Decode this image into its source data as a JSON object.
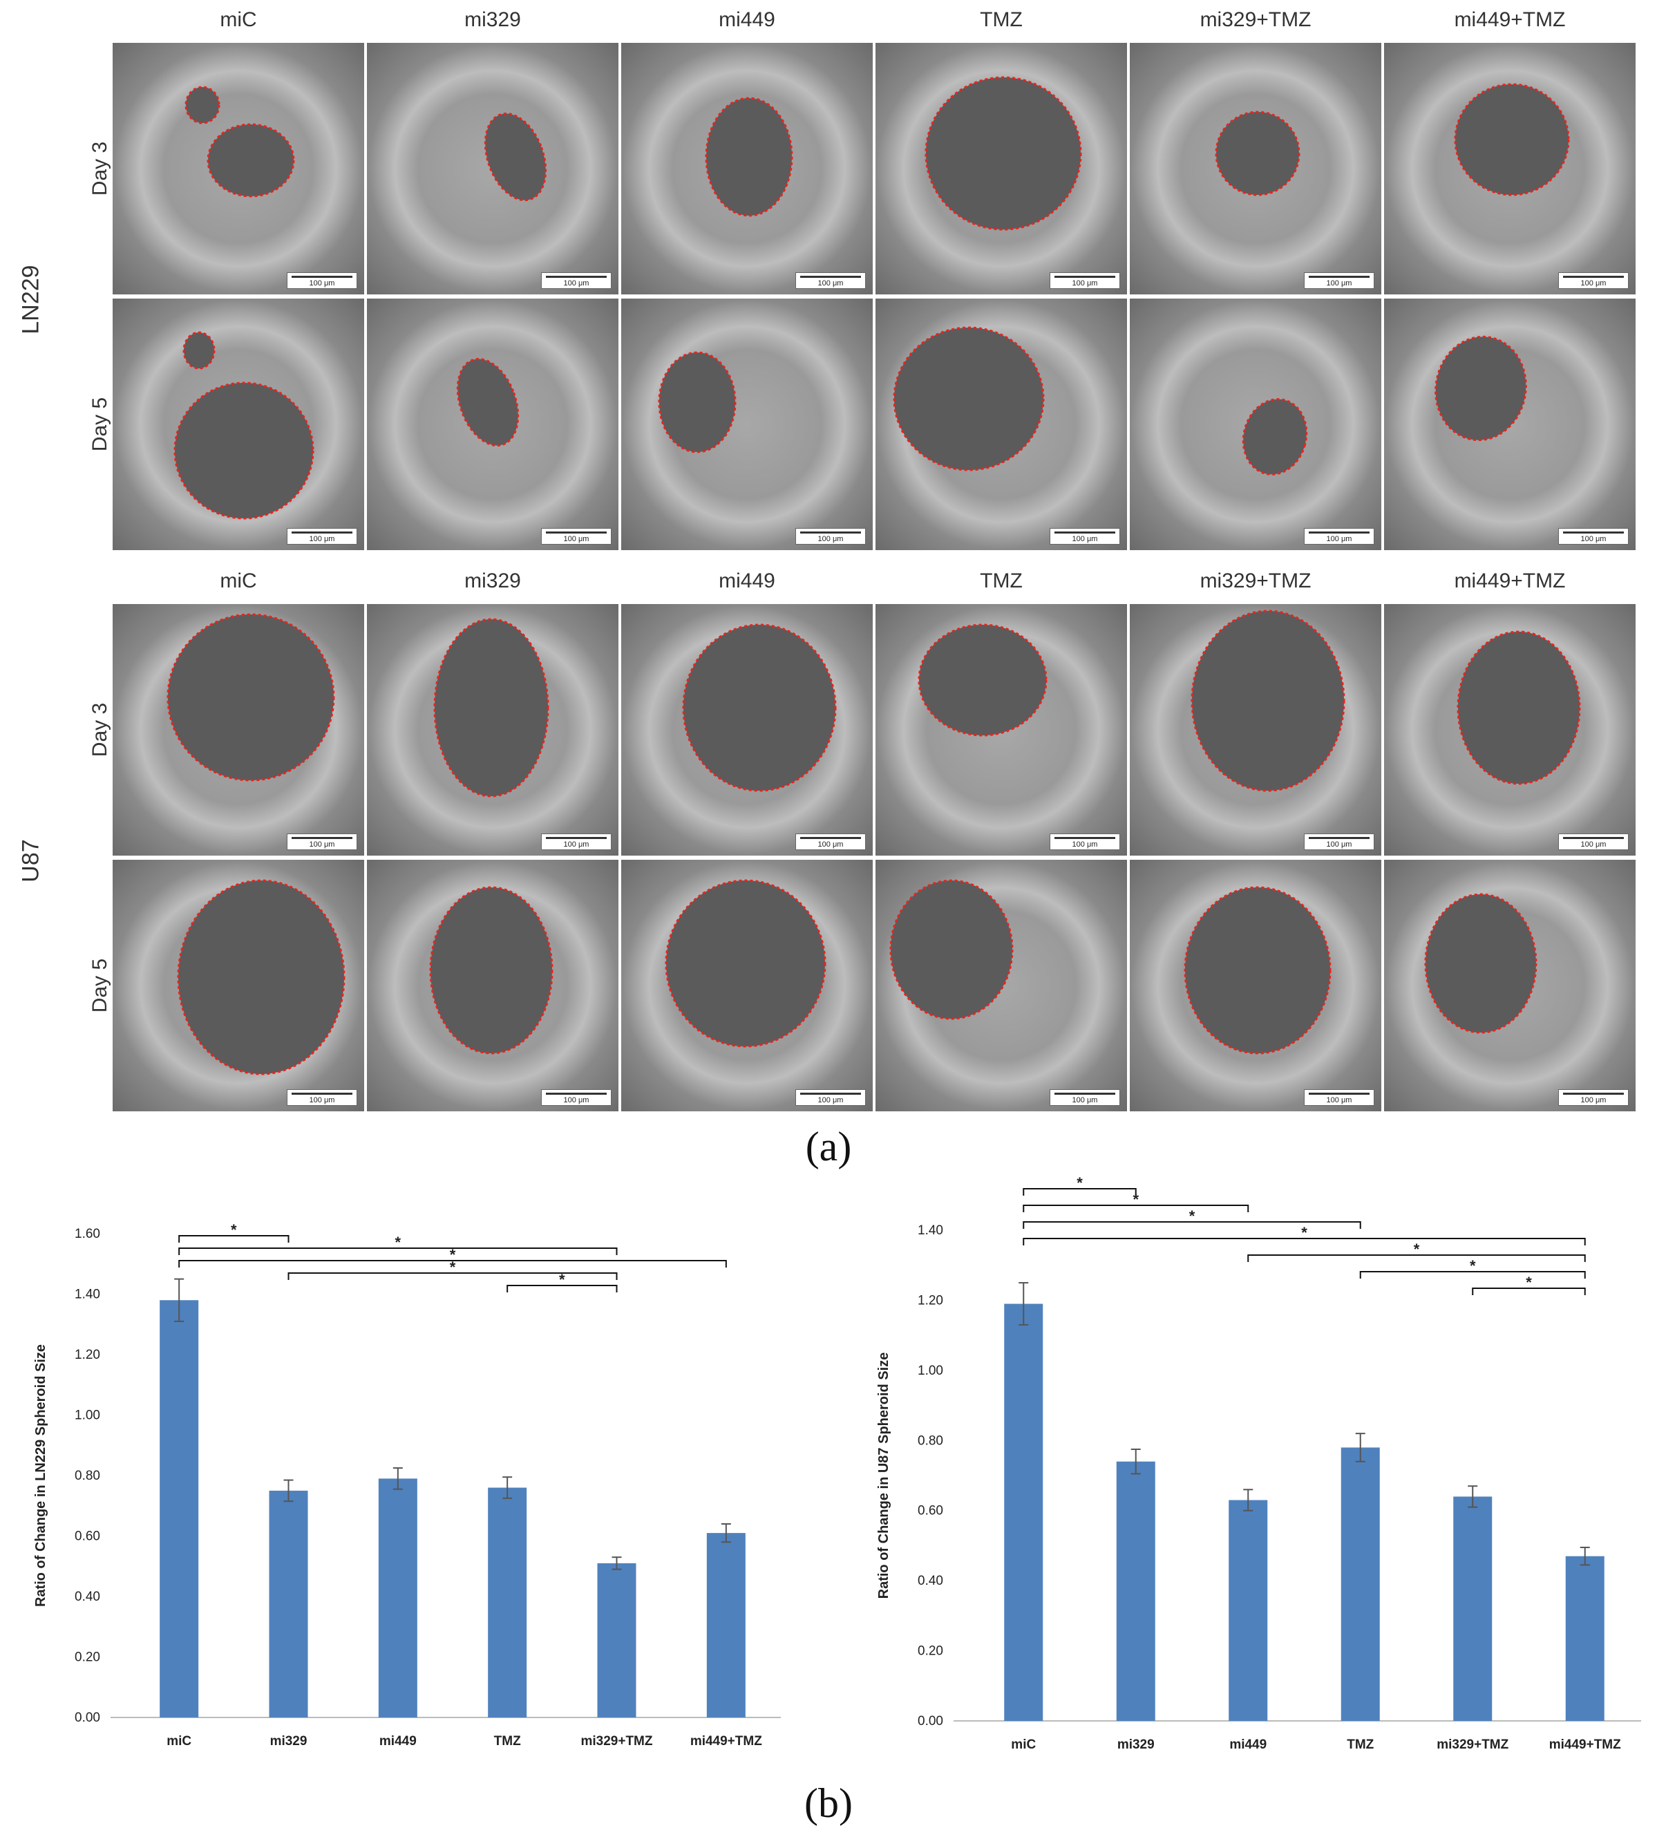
{
  "columns": [
    "miC",
    "mi329",
    "mi449",
    "TMZ",
    "mi329+TMZ",
    "mi449+TMZ"
  ],
  "cell_lines": [
    "LN229",
    "U87"
  ],
  "days": [
    "Day 3",
    "Day 5"
  ],
  "scale_bar_label": "100 μm",
  "panel_labels": {
    "a": "(a)",
    "b": "(b)"
  },
  "chart_data": [
    {
      "type": "bar",
      "categories": [
        "miC",
        "mi329",
        "mi449",
        "TMZ",
        "mi329+TMZ",
        "mi449+TMZ"
      ],
      "values": [
        1.38,
        0.75,
        0.79,
        0.76,
        0.51,
        0.61
      ],
      "errors": [
        0.07,
        0.035,
        0.035,
        0.035,
        0.02,
        0.03
      ],
      "ylabel": "Ratio of Change in LN229 Spheroid Size",
      "xlabel": "",
      "ylim": [
        0,
        1.6
      ],
      "yticks": [
        "0.00",
        "0.20",
        "0.40",
        "0.60",
        "0.80",
        "1.00",
        "1.20",
        "1.40",
        "1.60"
      ],
      "color": "#4f81bd",
      "significance": [
        {
          "from": 0,
          "to": 1,
          "label": "*"
        },
        {
          "from": 0,
          "to": 4,
          "label": "*"
        },
        {
          "from": 0,
          "to": 5,
          "label": "*"
        },
        {
          "from": 1,
          "to": 4,
          "label": "*"
        },
        {
          "from": 3,
          "to": 4,
          "label": "*"
        }
      ]
    },
    {
      "type": "bar",
      "categories": [
        "miC",
        "mi329",
        "mi449",
        "TMZ",
        "mi329+TMZ",
        "mi449+TMZ"
      ],
      "values": [
        1.19,
        0.74,
        0.63,
        0.78,
        0.64,
        0.47
      ],
      "errors": [
        0.06,
        0.035,
        0.03,
        0.04,
        0.03,
        0.025
      ],
      "ylabel": "Ratio of Change in U87 Spheroid Size",
      "xlabel": "",
      "ylim": [
        0,
        1.4
      ],
      "yticks": [
        "0.00",
        "0.20",
        "0.40",
        "0.60",
        "0.80",
        "1.00",
        "1.20",
        "1.40"
      ],
      "color": "#4f81bd",
      "significance": [
        {
          "from": 0,
          "to": 1,
          "label": "*"
        },
        {
          "from": 0,
          "to": 2,
          "label": "*"
        },
        {
          "from": 0,
          "to": 3,
          "label": "*"
        },
        {
          "from": 0,
          "to": 5,
          "label": "*"
        },
        {
          "from": 2,
          "to": 5,
          "label": "*"
        },
        {
          "from": 3,
          "to": 5,
          "label": "*"
        },
        {
          "from": 4,
          "to": 5,
          "label": "*"
        }
      ]
    }
  ]
}
